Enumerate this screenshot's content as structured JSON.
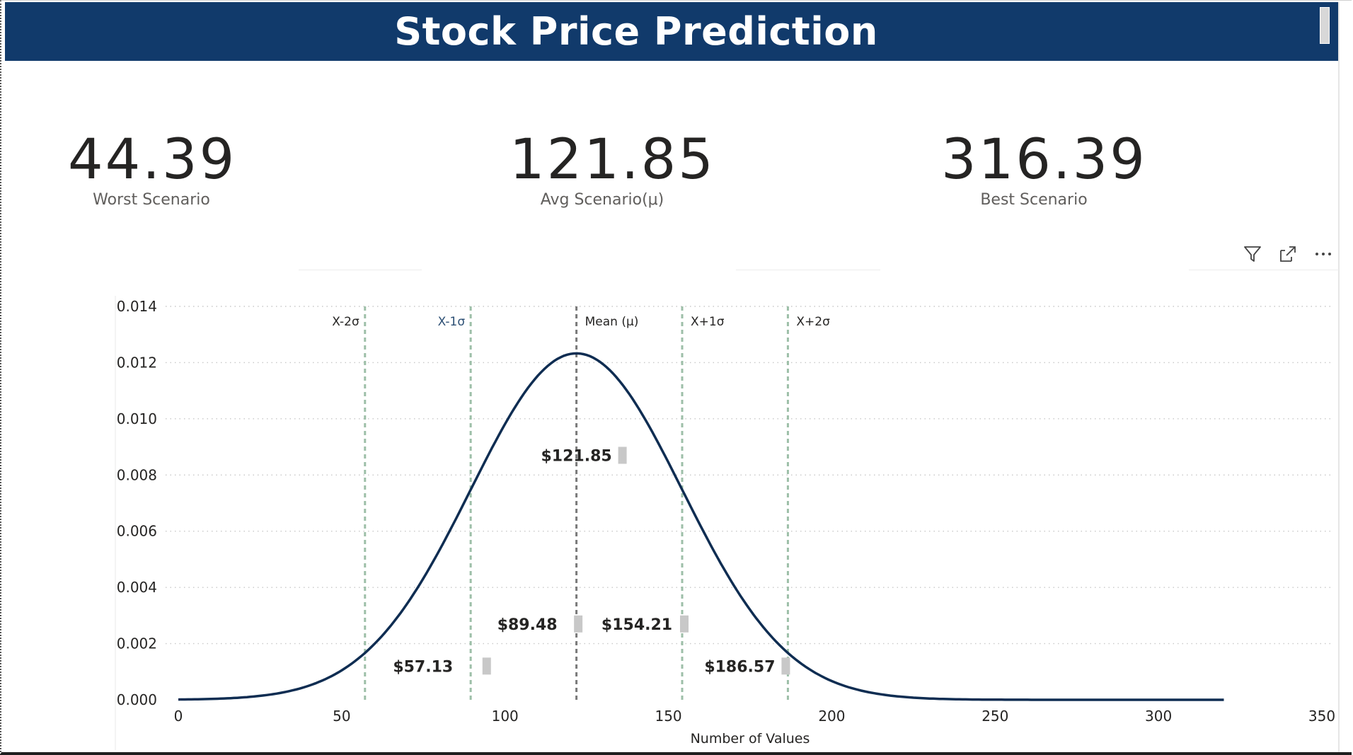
{
  "header": {
    "title": "Stock Price Prediction"
  },
  "kpis": [
    {
      "value": "44.39",
      "label": "Worst Scenario"
    },
    {
      "value": "121.85",
      "label": "Avg Scenario(μ)"
    },
    {
      "value": "316.39",
      "label": "Best Scenario"
    }
  ],
  "toolbar": {
    "icons": [
      "filter-icon",
      "focus-mode-icon",
      "more-options-icon"
    ]
  },
  "colors": {
    "header_bg": "#113a6b",
    "curve": "#0f2d52",
    "ref_line": "#9dbfa8",
    "mean_line": "#7a7a7a",
    "marker": "#c8c8c8"
  },
  "chart_data": {
    "type": "line",
    "title": "",
    "xlabel": "Number of Values",
    "ylabel": "",
    "xlim": [
      0,
      350
    ],
    "ylim": [
      0,
      0.014
    ],
    "xticks": [
      "0",
      "50",
      "100",
      "150",
      "200",
      "250",
      "300",
      "350"
    ],
    "yticks": [
      "0.000",
      "0.002",
      "0.004",
      "0.006",
      "0.008",
      "0.010",
      "0.012",
      "0.014"
    ],
    "grid": true,
    "series": [
      {
        "distribution": "normal",
        "mean": 121.85,
        "std": 32.36,
        "x_range": [
          0,
          320
        ]
      }
    ],
    "reference_lines": [
      {
        "label": "X-2σ",
        "x": 57.13,
        "value_label": "$57.13"
      },
      {
        "label": "X-1σ",
        "x": 89.48,
        "value_label": "$89.48"
      },
      {
        "label": "Mean (μ)",
        "x": 121.85,
        "value_label": "$121.85"
      },
      {
        "label": "X+1σ",
        "x": 154.21,
        "value_label": "$154.21"
      },
      {
        "label": "X+2σ",
        "x": 186.57,
        "value_label": "$186.57"
      }
    ]
  }
}
